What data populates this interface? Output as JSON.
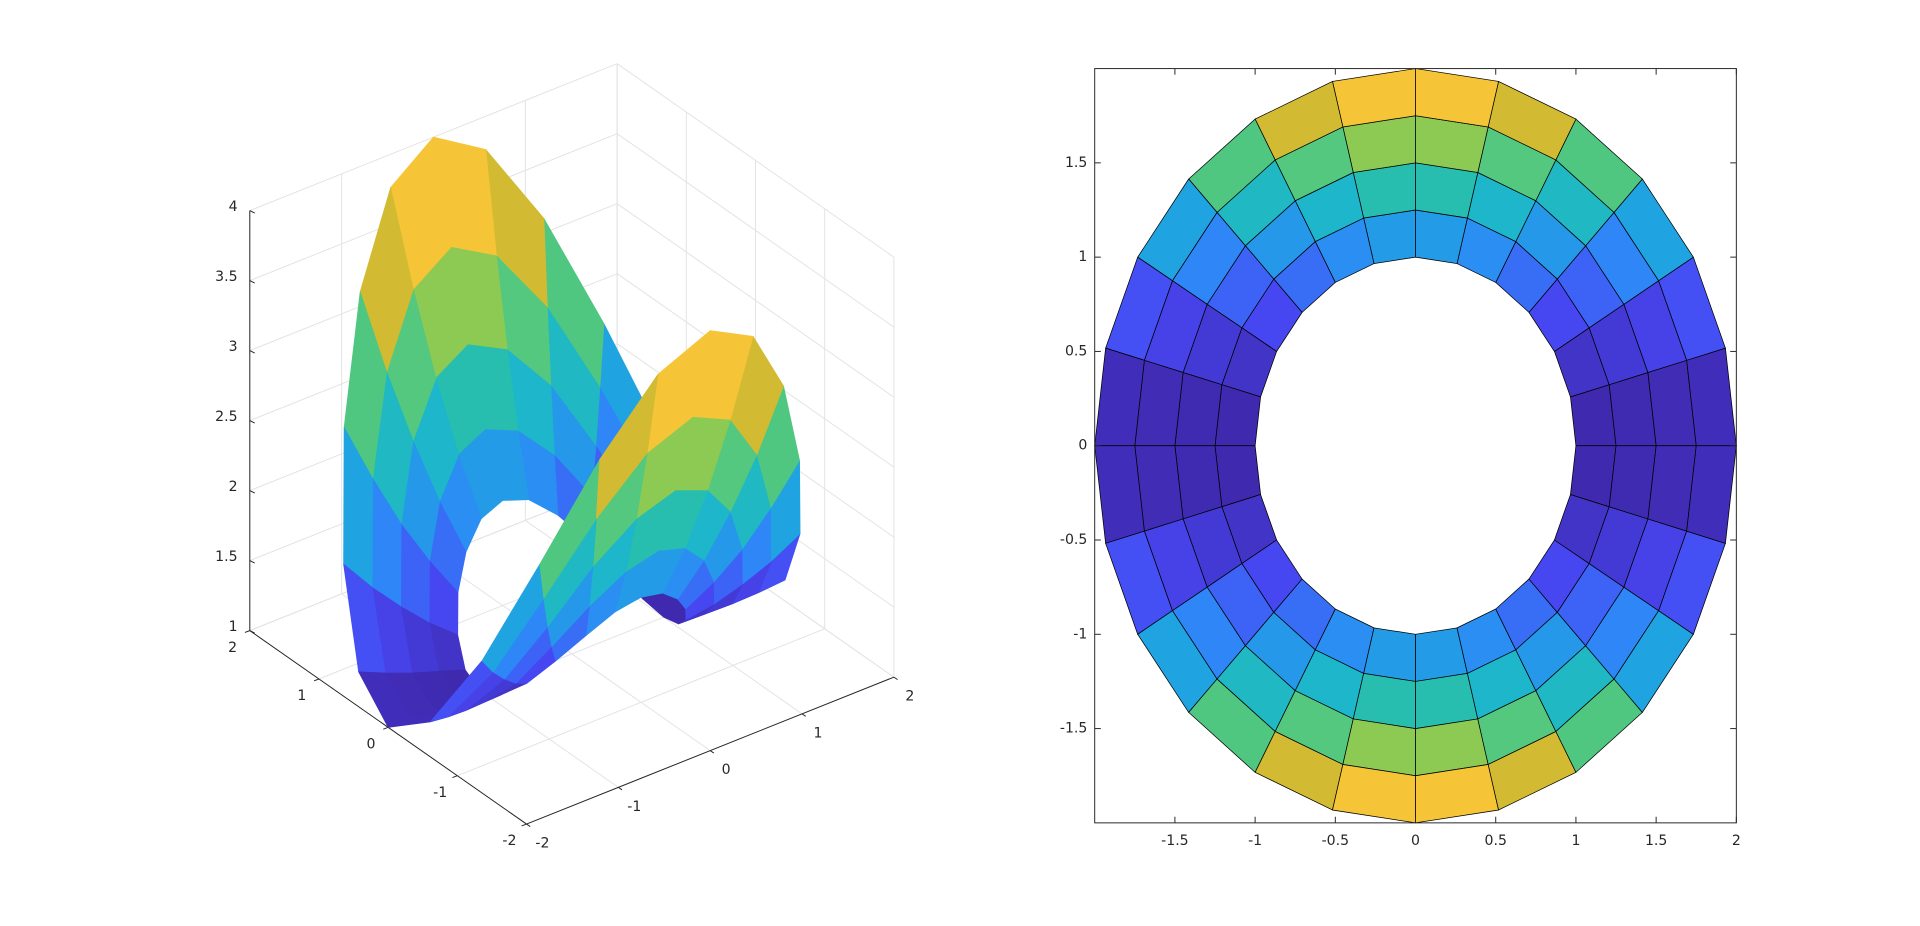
{
  "chart_data": [
    {
      "type": "surface3d",
      "xlim": [
        -2,
        2
      ],
      "ylim": [
        -2,
        2
      ],
      "zlim": [
        1,
        4
      ],
      "xticks": [
        -2,
        -1,
        0,
        1,
        2
      ],
      "yticks": [
        -2,
        -1,
        0,
        1,
        2
      ],
      "zticks": [
        1,
        1.5,
        2,
        2.5,
        3,
        3.5,
        4
      ],
      "grid": true,
      "colormap": [
        "#3e26a8",
        "#4748f4",
        "#2e87f7",
        "#19b2d5",
        "#2dc49e",
        "#81cc59",
        "#d7ba30",
        "#fcc739",
        "#f9fb15"
      ],
      "r": [
        1,
        1.25,
        1.5,
        1.75,
        2
      ],
      "theta": [
        0,
        15,
        30,
        45,
        60,
        75,
        90,
        105,
        120,
        135,
        150,
        165,
        180,
        195,
        210,
        225,
        240,
        255,
        270,
        285,
        300,
        315,
        330,
        345
      ],
      "z": [
        [
          1,
          1.05,
          1.19,
          1.38,
          1.56,
          1.7,
          1.75,
          1.7,
          1.56,
          1.38,
          1.19,
          1.05,
          1,
          1.05,
          1.19,
          1.38,
          1.56,
          1.7,
          1.75,
          1.7,
          1.56,
          1.38,
          1.19,
          1.05
        ],
        [
          1,
          1.08,
          1.29,
          1.59,
          1.88,
          2.09,
          2.17,
          2.09,
          1.88,
          1.59,
          1.29,
          1.08,
          1,
          1.08,
          1.29,
          1.59,
          1.88,
          2.09,
          2.17,
          2.09,
          1.88,
          1.59,
          1.29,
          1.08
        ],
        [
          1,
          1.11,
          1.42,
          1.84,
          2.27,
          2.57,
          2.69,
          2.57,
          2.27,
          1.84,
          1.42,
          1.11,
          1,
          1.11,
          1.42,
          1.84,
          2.27,
          2.57,
          2.69,
          2.57,
          2.27,
          1.84,
          1.42,
          1.11
        ],
        [
          1,
          1.15,
          1.57,
          2.15,
          2.72,
          3.14,
          3.3,
          3.14,
          2.72,
          2.15,
          1.57,
          1.15,
          1,
          1.15,
          1.57,
          2.15,
          2.72,
          3.14,
          3.3,
          3.14,
          2.72,
          2.15,
          1.57,
          1.15
        ],
        [
          1,
          1.2,
          1.75,
          2.5,
          3.25,
          3.8,
          4,
          3.8,
          3.25,
          2.5,
          1.75,
          1.2,
          1,
          1.2,
          1.75,
          2.5,
          3.25,
          3.8,
          4,
          3.8,
          3.25,
          2.5,
          1.75,
          1.2
        ]
      ]
    },
    {
      "type": "surface2d",
      "xlim": [
        -2,
        2
      ],
      "ylim": [
        -2,
        2
      ],
      "xticks": [
        -1.5,
        -1,
        -0.5,
        0,
        0.5,
        1,
        1.5,
        2
      ],
      "yticks": [
        -1.5,
        -1,
        -0.5,
        0,
        0.5,
        1,
        1.5
      ],
      "colormap": [
        "#3e26a8",
        "#4748f4",
        "#2e87f7",
        "#19b2d5",
        "#2dc49e",
        "#81cc59",
        "#d7ba30",
        "#fcc739",
        "#f9fb15"
      ],
      "edgecolor": "#000000",
      "r": [
        1,
        1.25,
        1.5,
        1.75,
        2
      ],
      "theta": [
        0,
        15,
        30,
        45,
        60,
        75,
        90,
        105,
        120,
        135,
        150,
        165,
        180,
        195,
        210,
        225,
        240,
        255,
        270,
        285,
        300,
        315,
        330,
        345
      ],
      "z": [
        [
          1,
          1.05,
          1.19,
          1.38,
          1.56,
          1.7,
          1.75,
          1.7,
          1.56,
          1.38,
          1.19,
          1.05,
          1,
          1.05,
          1.19,
          1.38,
          1.56,
          1.7,
          1.75,
          1.7,
          1.56,
          1.38,
          1.19,
          1.05
        ],
        [
          1,
          1.08,
          1.29,
          1.59,
          1.88,
          2.09,
          2.17,
          2.09,
          1.88,
          1.59,
          1.29,
          1.08,
          1,
          1.08,
          1.29,
          1.59,
          1.88,
          2.09,
          2.17,
          2.09,
          1.88,
          1.59,
          1.29,
          1.08
        ],
        [
          1,
          1.11,
          1.42,
          1.84,
          2.27,
          2.57,
          2.69,
          2.57,
          2.27,
          1.84,
          1.42,
          1.11,
          1,
          1.11,
          1.42,
          1.84,
          2.27,
          2.57,
          2.69,
          2.57,
          2.27,
          1.84,
          1.42,
          1.11
        ],
        [
          1,
          1.15,
          1.57,
          2.15,
          2.72,
          3.14,
          3.3,
          3.14,
          2.72,
          2.15,
          1.57,
          1.15,
          1,
          1.15,
          1.57,
          2.15,
          2.72,
          3.14,
          3.3,
          3.14,
          2.72,
          2.15,
          1.57,
          1.15
        ],
        [
          1,
          1.2,
          1.75,
          2.5,
          3.25,
          3.8,
          4,
          3.8,
          3.25,
          2.5,
          1.75,
          1.2,
          1,
          1.2,
          1.75,
          2.5,
          3.25,
          3.8,
          4,
          3.8,
          3.25,
          2.5,
          1.75,
          1.2
        ]
      ]
    }
  ]
}
